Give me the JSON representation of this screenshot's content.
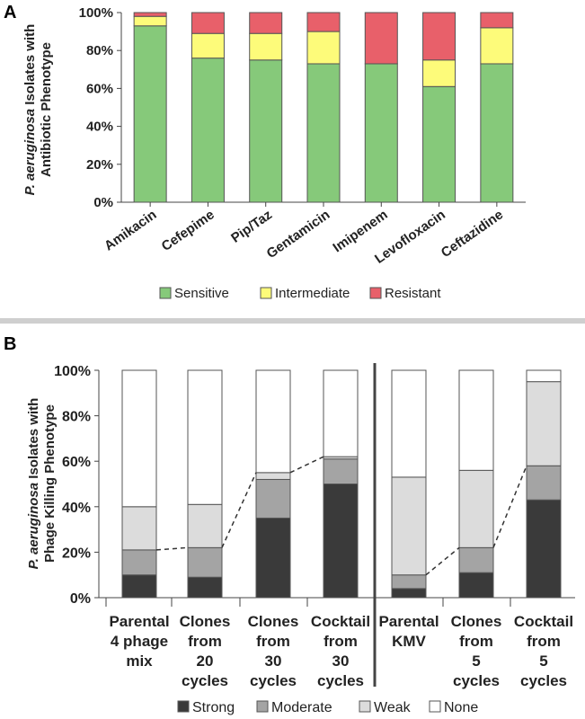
{
  "chart_data": [
    {
      "panel": "A",
      "type": "bar",
      "stacked": true,
      "ylabel": [
        "P. aeruginosa Isolates with",
        "Antibiotic Phenotype"
      ],
      "ylim": [
        0,
        100
      ],
      "yticks": [
        "0%",
        "20%",
        "40%",
        "60%",
        "80%",
        "100%"
      ],
      "categories": [
        "Amikacin",
        "Cefepime",
        "Pip/Taz",
        "Gentamicin",
        "Imipenem",
        "Levofloxacin",
        "Ceftazidine"
      ],
      "series": [
        {
          "name": "Sensitive",
          "color": "#86c97a",
          "values": [
            93,
            76,
            75,
            73,
            73,
            61,
            73
          ]
        },
        {
          "name": "Intermediate",
          "color": "#fdfb7a",
          "values": [
            5,
            13,
            14,
            17,
            0,
            14,
            19
          ]
        },
        {
          "name": "Resistant",
          "color": "#e8606a",
          "values": [
            2,
            11,
            11,
            10,
            27,
            25,
            8
          ]
        }
      ],
      "legend": [
        "Sensitive",
        "Intermediate",
        "Resistant"
      ]
    },
    {
      "panel": "B",
      "type": "bar",
      "stacked": true,
      "ylabel": [
        "P. aeruginosa Isolates with",
        "Phage Killing Phenotype"
      ],
      "ylim": [
        0,
        100
      ],
      "yticks": [
        "0%",
        "20%",
        "40%",
        "60%",
        "80%",
        "100%"
      ],
      "categories": [
        [
          "Parental",
          "4 phage",
          "mix"
        ],
        [
          "Clones",
          "from",
          "20",
          "cycles"
        ],
        [
          "Clones",
          "from",
          "30",
          "cycles"
        ],
        [
          "Cocktail",
          "from",
          "30",
          "cycles"
        ],
        [
          "Parental",
          "KMV"
        ],
        [
          "Clones",
          "from",
          "5",
          "cycles"
        ],
        [
          "Cocktail",
          "from",
          "5",
          "cycles"
        ]
      ],
      "series": [
        {
          "name": "Strong",
          "color": "#3a3a3a",
          "values": [
            10,
            9,
            35,
            50,
            4,
            11,
            43
          ]
        },
        {
          "name": "Moderate",
          "color": "#a4a4a4",
          "values": [
            11,
            13,
            17,
            11,
            6,
            11,
            15
          ]
        },
        {
          "name": "Weak",
          "color": "#dcdcdc",
          "values": [
            19,
            19,
            3,
            1,
            43,
            34,
            37
          ]
        },
        {
          "name": "None",
          "color": "#ffffff",
          "values": [
            60,
            59,
            45,
            38,
            47,
            44,
            5
          ]
        }
      ],
      "legend": [
        "Strong",
        "Moderate",
        "Weak",
        "None"
      ]
    }
  ],
  "labels": {
    "panel_a": "A",
    "panel_b": "B",
    "ylabel_italic": "P. aeruginosa",
    "ylabel_a_rest": " Isolates with",
    "ylabel_a_line2": "Antibiotic Phenotype",
    "ylabel_b_rest": " Isolates with",
    "ylabel_b_line2": "Phage Killing Phenotype"
  }
}
